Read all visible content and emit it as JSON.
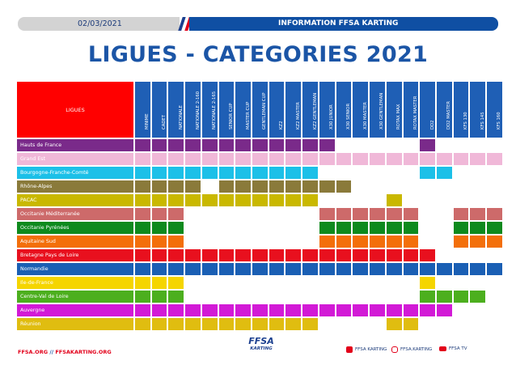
{
  "header": {
    "date": "02/03/2021",
    "info": "INFORMATION FFSA KARTING",
    "flag_colors": [
      "#1b3f8f",
      "#ffffff",
      "#e2001a"
    ]
  },
  "title": "LIGUES - CATEGORIES 2021",
  "table": {
    "corner_label": "LIGUES",
    "corner_color": "#ff0000",
    "header_color": "#1f5fb5",
    "columns": [
      "MINIME",
      "CADET",
      "NATIONALE",
      "NATIONALE 2-160",
      "NATIONALE 2-165",
      "SENIOR CUP",
      "MASTER CUP",
      "GENTLEMAN CUP",
      "KZ2",
      "KZ2 MASTER",
      "KZ2 GENTLEMAN",
      "X30 JUNIOR",
      "X30 SENIOR",
      "X30 MASTER",
      "X30 GENTLEMAN",
      "ROTAX MAX",
      "ROTAX MASTER",
      "DD2",
      "DD2 MASTER",
      "KFS 130",
      "KFS 145",
      "KFS 160"
    ],
    "rows": [
      {
        "name": "Hauts de France",
        "label_color": "#7a2a8a",
        "cell_color": "#7a2a8a",
        "filled": [
          1,
          1,
          1,
          1,
          1,
          1,
          1,
          1,
          1,
          1,
          1,
          1,
          0,
          0,
          0,
          0,
          0,
          1,
          0,
          0,
          0,
          0
        ]
      },
      {
        "name": "Grand Est",
        "label_color": "#f0b8d8",
        "cell_color": "#f0b8d8",
        "filled": [
          1,
          1,
          1,
          1,
          1,
          1,
          1,
          1,
          1,
          1,
          1,
          1,
          1,
          1,
          1,
          1,
          1,
          1,
          1,
          1,
          1,
          1
        ]
      },
      {
        "name": "Bourgogne-Franche-Comté",
        "label_color": "#1cc0e8",
        "cell_color": "#1cc0e8",
        "filled": [
          1,
          1,
          1,
          1,
          1,
          1,
          1,
          1,
          1,
          1,
          1,
          0,
          0,
          0,
          0,
          0,
          0,
          1,
          1,
          0,
          0,
          0
        ]
      },
      {
        "name": "Rhône-Alpes",
        "label_color": "#8a7a3a",
        "cell_color": "#8a7a3a",
        "filled": [
          1,
          1,
          1,
          1,
          0,
          1,
          1,
          1,
          1,
          1,
          1,
          1,
          1,
          0,
          0,
          0,
          0,
          0,
          0,
          0,
          0,
          0
        ]
      },
      {
        "name": "PACAC",
        "label_color": "#c9b800",
        "cell_color": "#c9b800",
        "filled": [
          1,
          1,
          1,
          1,
          1,
          1,
          1,
          1,
          1,
          1,
          1,
          0,
          0,
          0,
          0,
          1,
          0,
          0,
          0,
          0,
          0,
          0
        ]
      },
      {
        "name": "Occitanie Méditerranée",
        "label_color": "#cd6a6a",
        "cell_color": "#cd6a6a",
        "filled": [
          1,
          1,
          1,
          0,
          0,
          0,
          0,
          0,
          0,
          0,
          0,
          1,
          1,
          1,
          1,
          1,
          1,
          0,
          0,
          1,
          1,
          1
        ]
      },
      {
        "name": "Occitanie Pyrénées",
        "label_color": "#0e8a1e",
        "cell_color": "#0e8a1e",
        "filled": [
          1,
          1,
          1,
          0,
          0,
          0,
          0,
          0,
          0,
          0,
          0,
          1,
          1,
          1,
          1,
          1,
          1,
          0,
          0,
          1,
          1,
          1
        ]
      },
      {
        "name": "Aquitaine Sud",
        "label_color": "#f36f0a",
        "cell_color": "#f36f0a",
        "filled": [
          1,
          1,
          1,
          0,
          0,
          0,
          0,
          0,
          0,
          0,
          0,
          1,
          1,
          1,
          1,
          1,
          1,
          0,
          0,
          1,
          1,
          1
        ]
      },
      {
        "name": "Bretagne Pays de Loire",
        "label_color": "#e8101e",
        "cell_color": "#e8101e",
        "filled": [
          1,
          1,
          1,
          1,
          1,
          1,
          1,
          1,
          1,
          1,
          1,
          1,
          1,
          1,
          1,
          1,
          1,
          1,
          0,
          0,
          0,
          0
        ]
      },
      {
        "name": "Normandie",
        "label_color": "#1a5fb4",
        "cell_color": "#1a5fb4",
        "filled": [
          1,
          1,
          1,
          1,
          1,
          1,
          1,
          1,
          1,
          1,
          1,
          1,
          1,
          1,
          1,
          1,
          1,
          1,
          1,
          1,
          1,
          1
        ]
      },
      {
        "name": "Ile-de-France",
        "label_color": "#f5d500",
        "cell_color": "#f5d500",
        "filled": [
          1,
          1,
          1,
          0,
          0,
          0,
          0,
          0,
          0,
          0,
          0,
          0,
          0,
          0,
          0,
          0,
          0,
          1,
          0,
          0,
          0,
          0
        ]
      },
      {
        "name": "Centre-Val de Loire",
        "label_color": "#4caf1e",
        "cell_color": "#4caf1e",
        "filled": [
          1,
          1,
          1,
          0,
          0,
          0,
          0,
          0,
          0,
          0,
          0,
          0,
          0,
          0,
          0,
          0,
          0,
          1,
          1,
          1,
          1,
          0
        ]
      },
      {
        "name": "Auvergne",
        "label_color": "#d21ad6",
        "cell_color": "#d21ad6",
        "filled": [
          1,
          1,
          1,
          1,
          1,
          1,
          1,
          1,
          1,
          1,
          1,
          1,
          1,
          1,
          1,
          1,
          1,
          1,
          1,
          0,
          0,
          0
        ]
      },
      {
        "name": "Réunion",
        "label_color": "#e0bd10",
        "cell_color": "#e0bd10",
        "filled": [
          1,
          1,
          1,
          1,
          1,
          1,
          1,
          1,
          1,
          1,
          1,
          0,
          0,
          0,
          0,
          1,
          1,
          0,
          0,
          0,
          0,
          0
        ]
      }
    ]
  },
  "footer": {
    "site1": "FFSA.ORG",
    "sep": "//",
    "site2": "FFSAKARTING.ORG",
    "logo_main": "FFSA",
    "logo_sub": "KARTING",
    "social": [
      {
        "label": "FFSA KARTING",
        "icon": "facebook-icon",
        "color": "#e2001a"
      },
      {
        "label": "FFSA.KARTING",
        "icon": "instagram-icon",
        "color": "#e2001a"
      },
      {
        "label": "FFSA TV",
        "icon": "youtube-icon",
        "color": "#e2001a"
      }
    ]
  }
}
